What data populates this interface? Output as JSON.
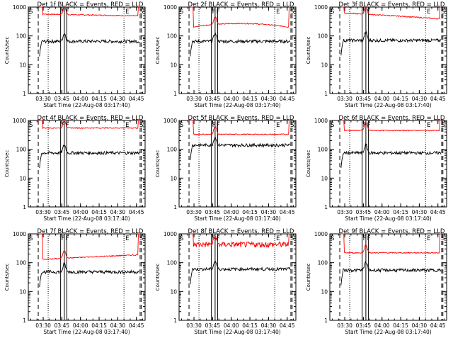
{
  "chart_data": {
    "type": "line",
    "layout": "3x3 grid",
    "yscale": "log",
    "ylim": [
      1,
      1000
    ],
    "ylabel": "Counts/sec",
    "xlabel": "Start Time (22-Aug-08 03:17:40)",
    "x_tick_labels": [
      "03:30",
      "03:45",
      "04:00",
      "04:15",
      "04:30",
      "04:45"
    ],
    "y_tick_labels": [
      "1",
      "10",
      "100",
      "1000"
    ],
    "marker_labels": {
      "start": "S",
      "flare": "F",
      "end": "E"
    },
    "marker_times": {
      "start_dashed": "03:26",
      "attenuator_dotted": "03:34",
      "flare": [
        "03:44",
        "03:47",
        "03:49"
      ],
      "end_dotted": "04:35",
      "end_dashed": "04:48",
      "right_dashed": "04:49"
    },
    "series_colors": {
      "events": "#000000",
      "lld": "#ff0000"
    },
    "panels": [
      {
        "title": "Det 1f BLACK = Events, RED = LLD",
        "events_level": 65,
        "lld_level": 520,
        "variant": "low-lld"
      },
      {
        "title": "Det 2f BLACK = Events, RED = LLD",
        "events_level": 65,
        "lld_level": 200,
        "variant": "hump"
      },
      {
        "title": "Det 3f BLACK = Events, RED = LLD",
        "events_level": 70,
        "lld_level": 480,
        "variant": "decline"
      },
      {
        "title": "Det 4f BLACK = Events, RED = LLD",
        "events_level": 75,
        "lld_level": 550,
        "variant": "flat"
      },
      {
        "title": "Det 5f BLACK = Events, RED = LLD",
        "events_level": 140,
        "lld_level": 330,
        "variant": "flat"
      },
      {
        "title": "Det 6f BLACK = Events, RED = LLD",
        "events_level": 75,
        "lld_level": 450,
        "variant": "flat"
      },
      {
        "title": "Det 7f BLACK = Events, RED = LLD",
        "events_level": 48,
        "lld_level": 150,
        "variant": "rise"
      },
      {
        "title": "Det 8f BLACK = Events, RED = LLD",
        "events_level": 60,
        "lld_level": 430,
        "variant": "noisy"
      },
      {
        "title": "Det 9f BLACK = Events, RED = LLD",
        "events_level": 55,
        "lld_level": 220,
        "variant": "flat"
      }
    ]
  }
}
